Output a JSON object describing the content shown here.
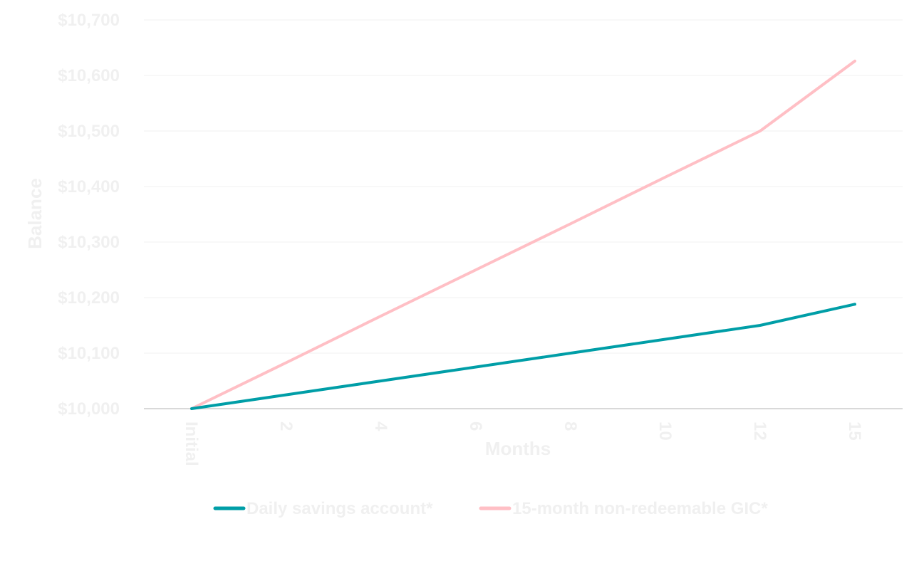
{
  "chart_data": {
    "type": "line",
    "title": "",
    "xlabel": "Months",
    "ylabel": "Balance",
    "categories": [
      "Initial",
      "2",
      "4",
      "6",
      "8",
      "10",
      "12",
      "15"
    ],
    "y_tick_labels": [
      "$10,000",
      "$10,100",
      "$10,200",
      "$10,300",
      "$10,400",
      "$10,500",
      "$10,600",
      "$10,700"
    ],
    "ylim": [
      10000,
      10700
    ],
    "y_step": 100,
    "grid": true,
    "legend_position": "bottom",
    "series": [
      {
        "name": "Daily savings account*",
        "color": "#009ea7",
        "values": [
          10000,
          10025,
          10050,
          10075,
          10100,
          10125,
          10150,
          10188
        ]
      },
      {
        "name": "15-month non-redeemable GIC*",
        "color": "#ffbfc5",
        "values": [
          10000,
          10083,
          10167,
          10250,
          10333,
          10417,
          10500,
          10626
        ]
      }
    ]
  }
}
